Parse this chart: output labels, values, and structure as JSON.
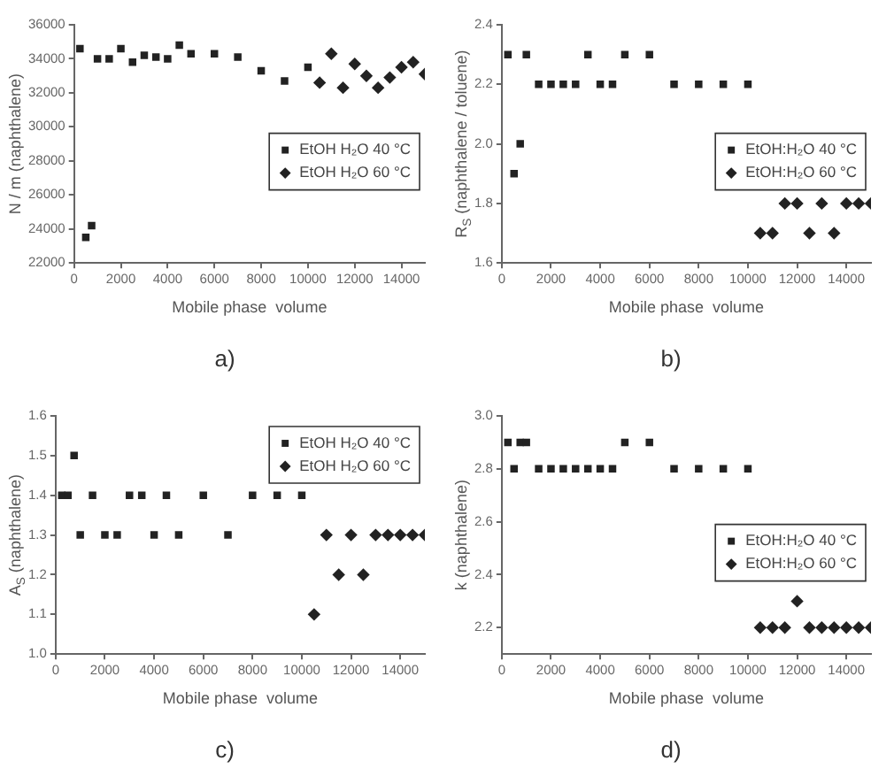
{
  "chart_data": [
    {
      "type": "scatter",
      "title": "a)",
      "xlabel": "Mobile phase  volume",
      "ylabel": "N / m (naphthalene)",
      "xlim": [
        0,
        15000
      ],
      "xticks": [
        0,
        2000,
        4000,
        6000,
        8000,
        10000,
        12000,
        14000
      ],
      "ylim": [
        22000,
        36000
      ],
      "yticks": [
        22000,
        24000,
        26000,
        28000,
        30000,
        32000,
        34000,
        36000
      ],
      "grid": false,
      "legend": "right",
      "series": [
        {
          "name": "EtOH H₂O 40 °C",
          "color": "#222222",
          "marker": "square",
          "x": [
            250,
            500,
            750,
            1000,
            1500,
            2000,
            2500,
            3000,
            3500,
            4000,
            4500,
            5000,
            6000,
            7000,
            8000,
            9000,
            10000
          ],
          "values": [
            34600,
            23500,
            24200,
            34000,
            34000,
            34600,
            33800,
            34200,
            34100,
            34000,
            34800,
            34300,
            34300,
            34100,
            33300,
            32700,
            33500
          ]
        },
        {
          "name": "EtOH H₂O 60 °C",
          "color": "#222222",
          "marker": "diamond",
          "x": [
            10500,
            11000,
            11500,
            12000,
            12500,
            13000,
            13500,
            14000,
            14500,
            15000
          ],
          "values": [
            32600,
            34300,
            32300,
            33700,
            33000,
            32300,
            32900,
            33500,
            33800,
            33100
          ]
        }
      ]
    },
    {
      "type": "scatter",
      "title": "b)",
      "xlabel": "Mobile phase  volume",
      "ylabel": "R$_{S}$ (naphthalene / toluene)",
      "xlim": [
        0,
        15000
      ],
      "xticks": [
        0,
        2000,
        4000,
        6000,
        8000,
        10000,
        12000,
        14000
      ],
      "ylim": [
        1.6,
        2.4
      ],
      "yticks": [
        1.6,
        1.8,
        {
          "value": 2,
          "label": "2.0"
        },
        2.2,
        2.4
      ],
      "grid": false,
      "legend": "right",
      "series": [
        {
          "name": "EtOH:H₂O 40 °C",
          "color": "#222222",
          "marker": "square",
          "x": [
            250,
            500,
            750,
            1000,
            1500,
            2000,
            2500,
            3000,
            3500,
            4000,
            4500,
            5000,
            6000,
            7000,
            8000,
            9000,
            10000
          ],
          "values": [
            2.3,
            1.9,
            2.0,
            2.3,
            2.2,
            2.2,
            2.2,
            2.2,
            2.3,
            2.2,
            2.2,
            2.3,
            2.3,
            2.2,
            2.2,
            2.2,
            2.2
          ]
        },
        {
          "name": "EtOH:H₂O 60 °C",
          "color": "#222222",
          "marker": "diamond",
          "x": [
            10500,
            11000,
            11500,
            12000,
            12500,
            13000,
            13500,
            14000,
            14500,
            15000
          ],
          "values": [
            1.7,
            1.7,
            1.8,
            1.8,
            1.7,
            1.8,
            1.7,
            1.8,
            1.8,
            1.8
          ]
        }
      ]
    },
    {
      "type": "scatter",
      "title": "c)",
      "xlabel": "Mobile phase  volume",
      "ylabel": "A$_{S}$ (naphthalene)",
      "xlim": [
        0,
        15000
      ],
      "xticks": [
        0,
        2000,
        4000,
        6000,
        8000,
        10000,
        12000,
        14000
      ],
      "ylim": [
        1.0,
        1.6
      ],
      "yticks": [
        {
          "value": 1,
          "label": "1.0"
        },
        1.1,
        1.2,
        1.3,
        1.4,
        1.5,
        1.6
      ],
      "grid": false,
      "legend": "top right",
      "series": [
        {
          "name": "EtOH H₂O 40 °C",
          "color": "#222222",
          "marker": "square",
          "x": [
            250,
            500,
            750,
            1000,
            1500,
            2000,
            2500,
            3000,
            3500,
            4000,
            4500,
            5000,
            6000,
            7000,
            8000,
            9000,
            10000
          ],
          "values": [
            1.4,
            1.4,
            1.5,
            1.3,
            1.4,
            1.3,
            1.3,
            1.4,
            1.4,
            1.3,
            1.4,
            1.3,
            1.4,
            1.3,
            1.4,
            1.4,
            1.4
          ]
        },
        {
          "name": "EtOH H₂O 60 °C",
          "color": "#222222",
          "marker": "diamond",
          "x": [
            10500,
            11000,
            11500,
            12000,
            12500,
            13000,
            13500,
            14000,
            14500,
            15000
          ],
          "values": [
            1.1,
            1.3,
            1.2,
            1.3,
            1.2,
            1.3,
            1.3,
            1.3,
            1.3,
            1.3
          ]
        }
      ]
    },
    {
      "type": "scatter",
      "title": "d)",
      "xlabel": "Mobile phase  volume",
      "ylabel": "k (naphthalene)",
      "xlim": [
        0,
        15000
      ],
      "xticks": [
        0,
        2000,
        4000,
        6000,
        8000,
        10000,
        12000,
        14000
      ],
      "ylim": [
        2.1,
        3.0
      ],
      "yticks": [
        2.2,
        2.4,
        2.6,
        2.8,
        {
          "value": 3,
          "label": "3.0"
        }
      ],
      "grid": false,
      "legend": "right",
      "series": [
        {
          "name": "EtOH:H₂O 40 °C",
          "color": "#222222",
          "marker": "square",
          "x": [
            250,
            500,
            750,
            1000,
            1500,
            2000,
            2500,
            3000,
            3500,
            4000,
            4500,
            5000,
            6000,
            7000,
            8000,
            9000,
            10000
          ],
          "values": [
            2.9,
            2.8,
            2.9,
            2.9,
            2.8,
            2.8,
            2.8,
            2.8,
            2.8,
            2.8,
            2.8,
            2.9,
            2.9,
            2.8,
            2.8,
            2.8,
            2.8
          ]
        },
        {
          "name": "EtOH:H₂O 60 °C",
          "color": "#222222",
          "marker": "diamond",
          "x": [
            10500,
            11000,
            11500,
            12000,
            12500,
            13000,
            13500,
            14000,
            14500,
            15000
          ],
          "values": [
            2.2,
            2.2,
            2.2,
            2.3,
            2.2,
            2.2,
            2.2,
            2.2,
            2.2,
            2.2
          ]
        }
      ]
    }
  ]
}
